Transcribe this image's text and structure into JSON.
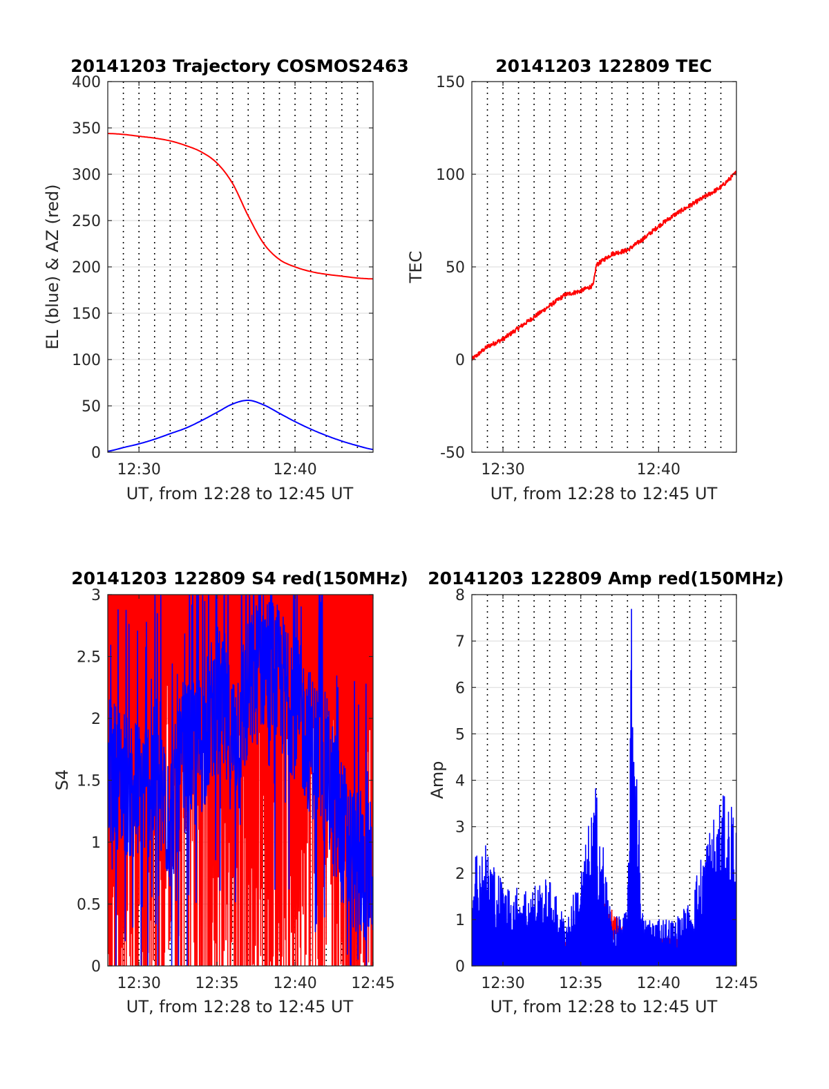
{
  "colors": {
    "red": "#ff0000",
    "blue": "#0000ff",
    "grid": "#d9d9d9",
    "axis": "#262626"
  },
  "chart_data": [
    {
      "type": "line",
      "title": "20141203 Trajectory COSMOS2463",
      "xlabel": "UT, from 12:28 to 12:45 UT",
      "ylabel": "EL (blue) & AZ (red)",
      "xlim": [
        "12:28",
        "12:45"
      ],
      "ylim": [
        0,
        400
      ],
      "yticks": [
        0,
        50,
        100,
        150,
        200,
        250,
        300,
        350,
        400
      ],
      "xticks": [
        "12:30",
        "12:40"
      ],
      "grid": true,
      "series": [
        {
          "color": "red",
          "x": [
            "12:28",
            "12:29",
            "12:30",
            "12:31",
            "12:32",
            "12:33",
            "12:34",
            "12:35",
            "12:36",
            "12:37",
            "12:38",
            "12:39",
            "12:40",
            "12:41",
            "12:42",
            "12:43",
            "12:44",
            "12:45"
          ],
          "values": [
            344,
            343,
            341,
            339,
            336,
            331,
            324,
            312,
            290,
            255,
            225,
            208,
            200,
            195,
            192,
            190,
            188,
            187
          ]
        },
        {
          "color": "blue",
          "x": [
            "12:28",
            "12:29",
            "12:30",
            "12:31",
            "12:32",
            "12:33",
            "12:34",
            "12:35",
            "12:36",
            "12:37",
            "12:38",
            "12:39",
            "12:40",
            "12:41",
            "12:42",
            "12:43",
            "12:44",
            "12:45"
          ],
          "values": [
            1,
            5,
            9,
            14,
            20,
            26,
            34,
            43,
            52,
            56,
            51,
            42,
            33,
            25,
            18,
            12,
            7,
            3
          ]
        }
      ]
    },
    {
      "type": "line",
      "title": "20141203 122809 TEC",
      "xlabel": "UT, from 12:28 to 12:45 UT",
      "ylabel": "TEC",
      "xlim": [
        "12:28",
        "12:45"
      ],
      "ylim": [
        -50,
        150
      ],
      "yticks": [
        -50,
        0,
        50,
        100,
        150
      ],
      "xticks": [
        "12:30",
        "12:40"
      ],
      "grid": true,
      "series": [
        {
          "color": "red",
          "x": [
            "12:28",
            "12:29",
            "12:30",
            "12:31",
            "12:32",
            "12:33",
            "12:34",
            "12:35",
            "12:35:48",
            "12:36",
            "12:37",
            "12:38",
            "12:39",
            "12:40",
            "12:41",
            "12:42",
            "12:43",
            "12:44",
            "12:45"
          ],
          "values": [
            0,
            7,
            11,
            17,
            23,
            29,
            35,
            37,
            40,
            51,
            57,
            59,
            65,
            72,
            78,
            83,
            88,
            93,
            101
          ]
        }
      ]
    },
    {
      "type": "line",
      "title": "20141203 122809 S4 red(150MHz)",
      "xlabel": "UT, from 12:28 to 12:45 UT",
      "ylabel": "S4",
      "xlim": [
        "12:28",
        "12:45"
      ],
      "ylim": [
        0,
        3
      ],
      "yticks": [
        0,
        0.5,
        1,
        1.5,
        2,
        2.5,
        3
      ],
      "xticks": [
        "12:30",
        "12:35",
        "12:40",
        "12:45"
      ],
      "grid": true,
      "series": [
        {
          "color": "red",
          "x": [
            "12:28",
            "12:29",
            "12:30",
            "12:31",
            "12:32",
            "12:33",
            "12:34",
            "12:35",
            "12:36",
            "12:37",
            "12:38",
            "12:39",
            "12:40",
            "12:41",
            "12:42",
            "12:43",
            "12:44",
            "12:45"
          ],
          "values": [
            3,
            3,
            3,
            3,
            3,
            3,
            3,
            3,
            3,
            3,
            3,
            3,
            3,
            3,
            3,
            3,
            3,
            3
          ]
        },
        {
          "color": "blue",
          "x": [
            "12:28",
            "12:29",
            "12:30",
            "12:31",
            "12:32",
            "12:33",
            "12:34",
            "12:35",
            "12:36",
            "12:37",
            "12:38",
            "12:39",
            "12:40",
            "12:41",
            "12:42",
            "12:43",
            "12:44",
            "12:45"
          ],
          "values": [
            1.6,
            1.5,
            1.4,
            1.5,
            1.2,
            1.7,
            1.8,
            2.2,
            1.8,
            2.2,
            2.5,
            2.3,
            2.1,
            1.8,
            1.6,
            1.1,
            0.8,
            0.75
          ]
        }
      ]
    },
    {
      "type": "line",
      "title": "20141203 122809 Amp red(150MHz)",
      "xlabel": "UT, from 12:28 to 12:45 UT",
      "ylabel": "Amp",
      "xlim": [
        "12:28",
        "12:45"
      ],
      "ylim": [
        0,
        8
      ],
      "yticks": [
        0,
        1,
        2,
        3,
        4,
        5,
        6,
        7,
        8
      ],
      "xticks": [
        "12:30",
        "12:35",
        "12:40",
        "12:45"
      ],
      "grid": true,
      "series": [
        {
          "color": "red",
          "x": [
            "12:28",
            "12:30",
            "12:32",
            "12:34",
            "12:36",
            "12:36:30",
            "12:38",
            "12:40",
            "12:42",
            "12:44",
            "12:45"
          ],
          "values": [
            0.4,
            0.6,
            0.6,
            0.5,
            0.6,
            1.2,
            0.6,
            0.5,
            0.6,
            0.7,
            0.7
          ]
        },
        {
          "color": "blue",
          "x": [
            "12:28",
            "12:29",
            "12:30",
            "12:31",
            "12:32",
            "12:33",
            "12:34",
            "12:35",
            "12:36",
            "12:37",
            "12:38",
            "12:38:15",
            "12:39",
            "12:40",
            "12:41",
            "12:42",
            "12:43",
            "12:44",
            "12:45"
          ],
          "values": [
            2.6,
            2.7,
            1.8,
            1.7,
            1.8,
            1.9,
            1.0,
            2.1,
            4.0,
            1.0,
            1.2,
            7.8,
            1.0,
            1.1,
            1.0,
            1.4,
            2.8,
            3.7,
            3.5
          ]
        }
      ]
    }
  ]
}
